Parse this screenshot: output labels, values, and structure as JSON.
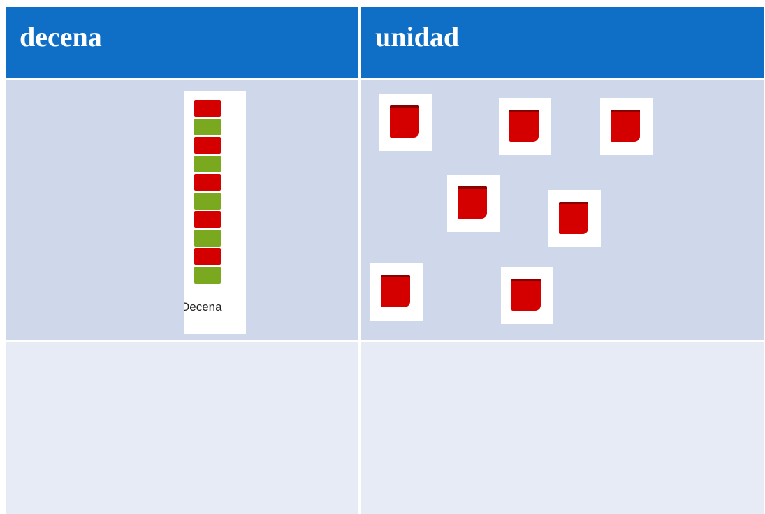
{
  "table": {
    "header": [
      "decena",
      "unidad"
    ]
  },
  "decena_image": {
    "label": "Decena"
  }
}
